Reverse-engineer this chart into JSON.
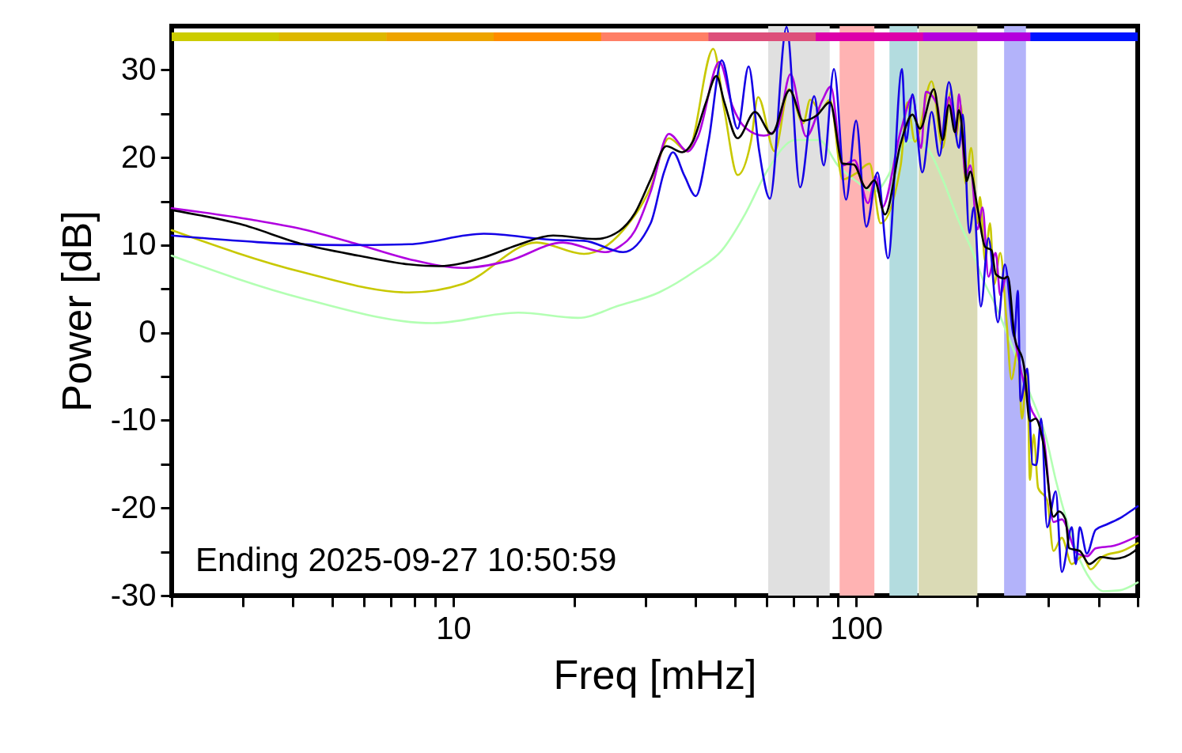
{
  "chart_data": {
    "type": "line",
    "xlabel": "Freq [mHz]",
    "ylabel": "Power [dB]",
    "log": "x",
    "marker": "none",
    "line_style": "solid",
    "xlim": [
      2,
      500
    ],
    "ylim": [
      -30,
      35
    ],
    "xticks": [
      {
        "value": 2,
        "label": null
      },
      {
        "value": 3,
        "label": null
      },
      {
        "value": 4,
        "label": null
      },
      {
        "value": 5,
        "label": null
      },
      {
        "value": 6,
        "label": null
      },
      {
        "value": 7,
        "label": null
      },
      {
        "value": 8,
        "label": null
      },
      {
        "value": 9,
        "label": null
      },
      10,
      {
        "value": 20,
        "label": null
      },
      {
        "value": 30,
        "label": null
      },
      {
        "value": 40,
        "label": null
      },
      {
        "value": 50,
        "label": null
      },
      {
        "value": 60,
        "label": null
      },
      {
        "value": 70,
        "label": null
      },
      {
        "value": 80,
        "label": null
      },
      {
        "value": 90,
        "label": null
      },
      100,
      {
        "value": 200,
        "label": null
      },
      {
        "value": 300,
        "label": null
      },
      {
        "value": 400,
        "label": null
      },
      {
        "value": 500,
        "label": null
      }
    ],
    "yticks": [
      -30,
      {
        "value": -25,
        "label": null
      },
      -20,
      {
        "value": -15,
        "label": null
      },
      -10,
      {
        "value": -5,
        "label": null
      },
      0,
      {
        "value": 5,
        "label": null
      },
      10,
      {
        "value": 15,
        "label": null
      },
      20,
      {
        "value": 25,
        "label": null
      },
      30
    ],
    "bands": [
      {
        "axis": "x",
        "from": 60.5,
        "to": 86,
        "color": "#e0e0e0"
      },
      {
        "axis": "x",
        "from": 91,
        "to": 111,
        "color": "#ffb3b3"
      },
      {
        "axis": "x",
        "from": 121,
        "to": 142,
        "color": "#b3dcdf"
      },
      {
        "axis": "x",
        "from": 143,
        "to": 200,
        "color": "#dadab5"
      },
      {
        "axis": "x",
        "from": 233,
        "to": 264,
        "color": "#b3b3fa"
      }
    ],
    "annotations": [
      "Ending 2025-09-27 10:50:59"
    ],
    "series": [
      {
        "color": "#b3ffb3",
        "x": [
          2,
          4.24,
          8.89,
          14.5,
          20.4,
          25.8,
          32.4,
          40,
          46.4,
          53.1,
          60,
          70.6,
          80.9,
          90.1,
          100,
          111,
          120,
          125,
          137,
          150,
          164,
          180,
          194,
          206,
          222,
          239,
          270,
          296,
          313,
          334,
          354,
          382,
          411,
          450,
          500
        ],
        "values": [
          8.8,
          3.9,
          1.1,
          2.3,
          1.7,
          3.1,
          4.6,
          7.1,
          9.4,
          13.6,
          18.4,
          22,
          22,
          19.1,
          17.3,
          16.1,
          17.9,
          19.7,
          22,
          21.1,
          17.5,
          12.7,
          9.4,
          6.2,
          3.1,
          -0.5,
          -6.9,
          -11.9,
          -16.8,
          -21.6,
          -25.2,
          -28.2,
          -29.5,
          -29.4,
          -28.5
        ]
      },
      {
        "color": "#c8c800",
        "x": [
          2,
          4.24,
          7.77,
          10.6,
          16.1,
          21.1,
          26.4,
          30.9,
          34.3,
          38.2,
          44.2,
          47.1,
          50.8,
          54.8,
          57.1,
          62.8,
          68.1,
          73.9,
          76.9,
          81.6,
          86.1,
          92.6,
          100,
          108,
          115,
          129,
          134,
          140,
          154,
          164,
          172,
          177,
          182,
          187,
          193,
          200,
          203,
          209,
          215,
          220,
          228,
          236,
          243,
          252,
          258,
          266,
          270,
          276,
          283,
          298,
          309,
          324,
          343,
          365,
          382,
          411,
          458,
          500
        ],
        "values": [
          11.7,
          6.9,
          4.6,
          5.6,
          10.3,
          9,
          11.7,
          16.6,
          22.2,
          20.7,
          32.4,
          25.4,
          18,
          21.8,
          26.9,
          20.7,
          27.8,
          23.9,
          26.6,
          25.4,
          26.6,
          17.5,
          18.2,
          19.3,
          12.5,
          19.1,
          26.3,
          21.8,
          28.7,
          21.1,
          27.5,
          22.4,
          26,
          17,
          21.1,
          12.5,
          15.5,
          8.2,
          12.5,
          5.5,
          9.1,
          1.6,
          -5.3,
          -2,
          -9.8,
          -4.1,
          -16.8,
          -11.6,
          -17.7,
          -19.1,
          -24.9,
          -23.4,
          -26.4,
          -25.5,
          -27,
          -25.5,
          -24.9,
          -24
        ]
      },
      {
        "color": "#b000e0",
        "x": [
          2,
          3.16,
          4.24,
          5.79,
          7.77,
          10.6,
          13.7,
          18.7,
          23.9,
          25.8,
          28.2,
          30.9,
          34.3,
          38.2,
          40.5,
          45.8,
          49.2,
          53.1,
          59,
          63.7,
          68.7,
          75.2,
          82.4,
          86.5,
          92.6,
          99.1,
          107,
          112,
          116,
          129,
          138,
          145,
          149,
          159,
          164,
          170,
          177,
          180,
          187,
          192,
          200,
          206,
          213,
          222,
          228,
          236,
          247,
          270,
          292,
          309,
          324,
          354,
          375,
          393,
          438,
          500
        ],
        "values": [
          14.2,
          12.9,
          11.8,
          10.1,
          8.4,
          7.4,
          8.2,
          10.3,
          9.2,
          9.8,
          11.6,
          16.1,
          22.7,
          20.7,
          22.4,
          30.9,
          26,
          23.4,
          22.5,
          23.3,
          29.5,
          22.4,
          26.5,
          28.1,
          19.1,
          19.7,
          14.8,
          17.9,
          14.3,
          23,
          26.9,
          21.1,
          27.5,
          26,
          22,
          26.9,
          22.7,
          27.2,
          17.9,
          19.1,
          11.8,
          14.3,
          6.4,
          9.1,
          4.3,
          6.4,
          -0.2,
          -8.3,
          -11.9,
          -21.6,
          -21.3,
          -25.2,
          -25.5,
          -24.6,
          -24.3,
          -23.2
        ]
      },
      {
        "color": "#1400e6",
        "x": [
          2,
          5.31,
          7.77,
          11.9,
          17.7,
          21.1,
          26.4,
          30.9,
          33.4,
          35.1,
          37.5,
          40,
          43,
          46.4,
          50.8,
          54.1,
          57.4,
          61.1,
          67.2,
          72.6,
          78.7,
          83.1,
          88.1,
          94.4,
          100,
          106,
          113,
          120,
          130,
          133,
          138,
          146,
          154,
          161,
          170,
          180,
          184,
          191,
          196,
          204,
          213,
          225,
          234,
          247,
          252,
          256,
          266,
          274,
          280,
          288,
          298,
          313,
          324,
          343,
          351,
          359,
          374,
          393,
          418,
          458,
          486,
          500
        ],
        "values": [
          11.1,
          10,
          10.1,
          11.3,
          10.6,
          10.5,
          9.2,
          12.5,
          18.4,
          20.6,
          17.9,
          15.6,
          21.8,
          31.1,
          23.3,
          30.4,
          20.9,
          15.3,
          34.9,
          16.6,
          27,
          19.1,
          30.1,
          15.2,
          24.2,
          12.1,
          18.3,
          8.5,
          30.1,
          21.8,
          27.2,
          18.3,
          25.2,
          20.2,
          28.6,
          21.1,
          24.9,
          11.4,
          14.3,
          3,
          10.8,
          1.2,
          7.8,
          -0.5,
          4.8,
          -7.8,
          -4.1,
          -15,
          -15.1,
          -9.8,
          -22.2,
          -18.1,
          -27.3,
          -22.2,
          -26.4,
          -22.2,
          -25.2,
          -22.5,
          -21.9,
          -21,
          -20.2,
          -19.8
        ]
      },
      {
        "color": "#000000",
        "x": [
          2,
          2.96,
          4.24,
          5.82,
          7.77,
          9.22,
          11.9,
          14.4,
          17.7,
          22.6,
          25.8,
          28.2,
          30.9,
          33.8,
          37,
          39.3,
          42.4,
          45,
          47.1,
          50.8,
          56.1,
          61.7,
          68.4,
          73.9,
          79.8,
          86.1,
          92.6,
          98.6,
          106,
          111,
          118,
          129,
          138,
          144,
          156,
          164,
          170,
          176,
          180,
          186,
          188,
          192,
          200,
          209,
          217,
          222,
          233,
          238,
          247,
          261,
          270,
          279,
          292,
          309,
          319,
          331,
          338,
          359,
          379,
          405,
          438,
          492,
          500
        ],
        "values": [
          14,
          12.4,
          10.1,
          8.8,
          7.8,
          7.6,
          8.6,
          10,
          11.1,
          10.7,
          11.6,
          13.6,
          17.5,
          21.3,
          20.6,
          21.8,
          26.3,
          29.3,
          26.3,
          22.2,
          25.2,
          22.7,
          27.7,
          24.2,
          24.8,
          26.3,
          19.3,
          19.2,
          16.5,
          17.4,
          13.5,
          21.6,
          24.9,
          23.3,
          27.8,
          22,
          26,
          22.9,
          25.4,
          19.7,
          17.3,
          18.4,
          14.3,
          9.8,
          9.4,
          6.7,
          6.2,
          6.4,
          -0.3,
          -3.8,
          -10.1,
          -9.8,
          -12.8,
          -21,
          -20.4,
          -21.3,
          -24.6,
          -24.9,
          -26.4,
          -25.6,
          -25.8,
          -24.9,
          -24.5
        ]
      }
    ]
  }
}
